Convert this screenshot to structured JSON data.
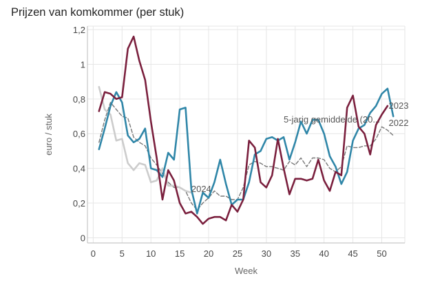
{
  "chart_data": {
    "type": "line",
    "title": "Prijzen van komkommer (per stuk)",
    "xlabel": "Week",
    "ylabel": "euro / stuk",
    "xlim": [
      -1,
      54
    ],
    "ylim": [
      -0.03,
      1.22
    ],
    "xticks": [
      0,
      5,
      10,
      15,
      20,
      25,
      30,
      35,
      40,
      45,
      50
    ],
    "xtick_labels": [
      "0",
      "5",
      "10",
      "15",
      "20",
      "25",
      "30",
      "35",
      "40",
      "45",
      "50"
    ],
    "yticks": [
      0,
      0.2,
      0.4,
      0.6,
      0.8,
      1.0,
      1.2
    ],
    "ytick_labels": [
      "0",
      "0,2",
      "0,4",
      "0,6",
      "0,8",
      "1",
      "1,2"
    ],
    "grid": true,
    "series": [
      {
        "name": "5-jarig gemiddelde (20...",
        "color": "#777777",
        "dash": "dashed",
        "x": [
          1,
          2,
          3,
          4,
          5,
          6,
          7,
          8,
          9,
          10,
          11,
          12,
          13,
          14,
          15,
          16,
          17,
          18,
          19,
          20,
          21,
          22,
          23,
          24,
          25,
          26,
          27,
          28,
          29,
          30,
          31,
          32,
          33,
          34,
          35,
          36,
          37,
          38,
          39,
          40,
          41,
          42,
          43,
          44,
          45,
          46,
          47,
          48,
          49,
          50,
          51,
          52
        ],
        "y": [
          0.55,
          0.68,
          0.78,
          0.74,
          0.7,
          0.69,
          0.58,
          0.55,
          0.53,
          0.46,
          0.42,
          0.37,
          0.32,
          0.29,
          0.29,
          0.27,
          0.2,
          0.16,
          0.2,
          0.23,
          0.27,
          0.24,
          0.24,
          0.22,
          0.22,
          0.29,
          0.42,
          0.44,
          0.43,
          0.41,
          0.41,
          0.4,
          0.39,
          0.44,
          0.42,
          0.46,
          0.41,
          0.46,
          0.46,
          0.45,
          0.4,
          0.38,
          0.41,
          0.53,
          0.52,
          0.52,
          0.53,
          0.53,
          0.57,
          0.64,
          0.62,
          0.59
        ]
      },
      {
        "name": "2024",
        "color": "#cccccc",
        "dash": "solid",
        "x": [
          1,
          2,
          3,
          4,
          5,
          6,
          7,
          8,
          9,
          10,
          11,
          12,
          13,
          14,
          15,
          16,
          17
        ],
        "y": [
          0.87,
          0.74,
          0.71,
          0.56,
          0.57,
          0.43,
          0.39,
          0.43,
          0.42,
          0.32,
          0.33,
          0.4,
          0.3,
          0.3,
          0.29,
          0.27,
          0.26
        ]
      },
      {
        "name": "2023",
        "color": "#2f86a8",
        "dash": "solid",
        "x": [
          1,
          2,
          3,
          4,
          5,
          6,
          7,
          8,
          9,
          10,
          11,
          12,
          13,
          14,
          15,
          16,
          17,
          18,
          19,
          20,
          21,
          22,
          23,
          24,
          25,
          26,
          27,
          28,
          29,
          30,
          31,
          32,
          33,
          34,
          35,
          36,
          37,
          38,
          39,
          40,
          41,
          42,
          43,
          44,
          45,
          46,
          47,
          48,
          49,
          50,
          51,
          52
        ],
        "y": [
          0.51,
          0.63,
          0.76,
          0.84,
          0.78,
          0.59,
          0.55,
          0.57,
          0.63,
          0.4,
          0.39,
          0.35,
          0.49,
          0.45,
          0.74,
          0.75,
          0.28,
          0.14,
          0.26,
          0.23,
          0.32,
          0.45,
          0.31,
          0.19,
          0.22,
          0.22,
          0.32,
          0.48,
          0.5,
          0.57,
          0.58,
          0.56,
          0.58,
          0.45,
          0.55,
          0.67,
          0.6,
          0.68,
          0.68,
          0.6,
          0.47,
          0.41,
          0.31,
          0.38,
          0.56,
          0.63,
          0.65,
          0.72,
          0.76,
          0.83,
          0.86,
          0.7
        ]
      },
      {
        "name": "2022",
        "color": "#7a1f3d",
        "dash": "solid",
        "x": [
          1,
          2,
          3,
          4,
          5,
          6,
          7,
          8,
          9,
          10,
          11,
          12,
          13,
          14,
          15,
          16,
          17,
          18,
          19,
          20,
          21,
          22,
          23,
          24,
          25,
          26,
          27,
          28,
          29,
          30,
          31,
          32,
          33,
          34,
          35,
          36,
          37,
          38,
          39,
          40,
          41,
          42,
          43,
          44,
          45,
          46,
          47,
          48,
          49,
          50,
          51
        ],
        "y": [
          0.73,
          0.84,
          0.83,
          0.8,
          0.81,
          1.09,
          1.16,
          1.02,
          0.91,
          0.67,
          0.46,
          0.22,
          0.39,
          0.33,
          0.2,
          0.14,
          0.15,
          0.12,
          0.08,
          0.11,
          0.12,
          0.12,
          0.1,
          0.19,
          0.15,
          0.22,
          0.56,
          0.52,
          0.32,
          0.29,
          0.36,
          0.57,
          0.4,
          0.25,
          0.34,
          0.34,
          0.33,
          0.34,
          0.45,
          0.33,
          0.27,
          0.38,
          0.36,
          0.75,
          0.82,
          0.64,
          0.6,
          0.48,
          0.65,
          0.71,
          0.76
        ]
      }
    ],
    "annotations": [
      {
        "text": "5-jarig gemiddelde (20...",
        "x": 33,
        "y": 0.68
      },
      {
        "text": "2024",
        "x": 17,
        "y": 0.28
      },
      {
        "text": "2023",
        "x": 51.2,
        "y": 0.76
      },
      {
        "text": "2022",
        "x": 51.2,
        "y": 0.66
      }
    ]
  }
}
